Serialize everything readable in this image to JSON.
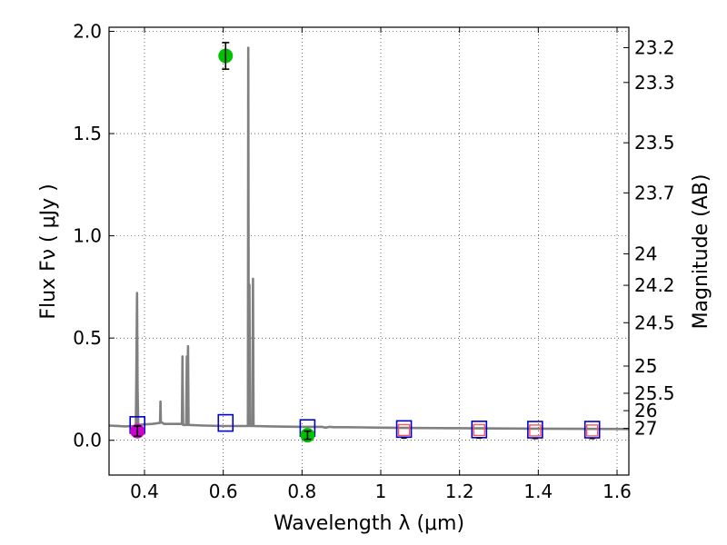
{
  "chart_data": {
    "type": "scatter",
    "xlabel": "Wavelength  λ (μm)",
    "ylabel": "Flux  Fν  ( μJy )",
    "ylabel_right": "Magnitude (AB)",
    "xlim": [
      0.31,
      1.63
    ],
    "ylim": [
      -0.17,
      2.02
    ],
    "grid": true,
    "x_ticks": [
      {
        "value": 0.4,
        "label": "0.4"
      },
      {
        "value": 0.6,
        "label": "0.6"
      },
      {
        "value": 0.8,
        "label": "0.8"
      },
      {
        "value": 1.0,
        "label": "1"
      },
      {
        "value": 1.2,
        "label": "1.2"
      },
      {
        "value": 1.4,
        "label": "1.4"
      },
      {
        "value": 1.6,
        "label": "1.6"
      }
    ],
    "y_ticks": [
      {
        "value": 0.0,
        "label": "0.0"
      },
      {
        "value": 0.5,
        "label": "0.5"
      },
      {
        "value": 1.0,
        "label": "1.0"
      },
      {
        "value": 1.5,
        "label": "1.5"
      },
      {
        "value": 2.0,
        "label": "2.0"
      }
    ],
    "magnitude_ticks": [
      {
        "flux": 1.92,
        "label": "23.2"
      },
      {
        "flux": 1.75,
        "label": "23.3"
      },
      {
        "flux": 1.455,
        "label": "23.5"
      },
      {
        "flux": 1.21,
        "label": "23.7"
      },
      {
        "flux": 0.912,
        "label": "24"
      },
      {
        "flux": 0.758,
        "label": "24.2"
      },
      {
        "flux": 0.575,
        "label": "24.5"
      },
      {
        "flux": 0.363,
        "label": "25"
      },
      {
        "flux": 0.23,
        "label": "25.5"
      },
      {
        "flux": 0.145,
        "label": "26"
      },
      {
        "flux": 0.058,
        "label": "27"
      }
    ],
    "colors": {
      "spectrum": "#808080",
      "model_box": "#0000cc",
      "detection_green": "#00c000",
      "detection_magenta": "#cc00cc",
      "upper_limit_red": "#ff5555",
      "error_bar": "#000000"
    },
    "spectrum": [
      [
        0.31,
        0.072
      ],
      [
        0.35,
        0.068
      ],
      [
        0.378,
        0.07
      ],
      [
        0.3795,
        0.34
      ],
      [
        0.381,
        0.72
      ],
      [
        0.3825,
        0.25
      ],
      [
        0.384,
        0.075
      ],
      [
        0.4,
        0.078
      ],
      [
        0.42,
        0.08
      ],
      [
        0.4395,
        0.085
      ],
      [
        0.4405,
        0.19
      ],
      [
        0.4415,
        0.09
      ],
      [
        0.45,
        0.08
      ],
      [
        0.48,
        0.08
      ],
      [
        0.495,
        0.08
      ],
      [
        0.4965,
        0.41
      ],
      [
        0.498,
        0.075
      ],
      [
        0.506,
        0.075
      ],
      [
        0.5075,
        0.41
      ],
      [
        0.509,
        0.075
      ],
      [
        0.5105,
        0.46
      ],
      [
        0.512,
        0.075
      ],
      [
        0.55,
        0.072
      ],
      [
        0.6,
        0.07
      ],
      [
        0.65,
        0.07
      ],
      [
        0.66,
        0.07
      ],
      [
        0.6625,
        0.07
      ],
      [
        0.6635,
        1.92
      ],
      [
        0.665,
        0.1
      ],
      [
        0.6665,
        0.76
      ],
      [
        0.668,
        0.07
      ],
      [
        0.674,
        0.07
      ],
      [
        0.6755,
        0.79
      ],
      [
        0.677,
        0.07
      ],
      [
        0.72,
        0.068
      ],
      [
        0.8,
        0.066
      ],
      [
        0.85,
        0.066
      ],
      [
        0.86,
        0.062
      ],
      [
        0.87,
        0.066
      ],
      [
        0.88,
        0.064
      ],
      [
        0.9,
        0.064
      ],
      [
        0.95,
        0.063
      ],
      [
        1.0,
        0.062
      ],
      [
        1.1,
        0.06
      ],
      [
        1.2,
        0.059
      ],
      [
        1.3,
        0.058
      ],
      [
        1.4,
        0.057
      ],
      [
        1.5,
        0.056
      ],
      [
        1.63,
        0.055
      ]
    ],
    "model_boxes": [
      {
        "x": 0.382,
        "y": 0.075
      },
      {
        "x": 0.606,
        "y": 0.085
      },
      {
        "x": 0.814,
        "y": 0.06
      },
      {
        "x": 1.059,
        "y": 0.055
      },
      {
        "x": 1.25,
        "y": 0.053
      },
      {
        "x": 1.392,
        "y": 0.052
      },
      {
        "x": 1.537,
        "y": 0.052
      }
    ],
    "detections": [
      {
        "x": 0.606,
        "y": 1.88,
        "err": 0.065,
        "color": "detection_green"
      },
      {
        "x": 0.814,
        "y": 0.025,
        "err": 0.02,
        "color": "detection_green"
      },
      {
        "x": 0.382,
        "y": 0.045,
        "err": 0.025,
        "color": "detection_magenta"
      }
    ],
    "upper_limits": [
      {
        "x": 1.059,
        "y": 0.05
      },
      {
        "x": 1.25,
        "y": 0.05
      },
      {
        "x": 1.392,
        "y": 0.048
      },
      {
        "x": 1.537,
        "y": 0.048
      }
    ]
  }
}
